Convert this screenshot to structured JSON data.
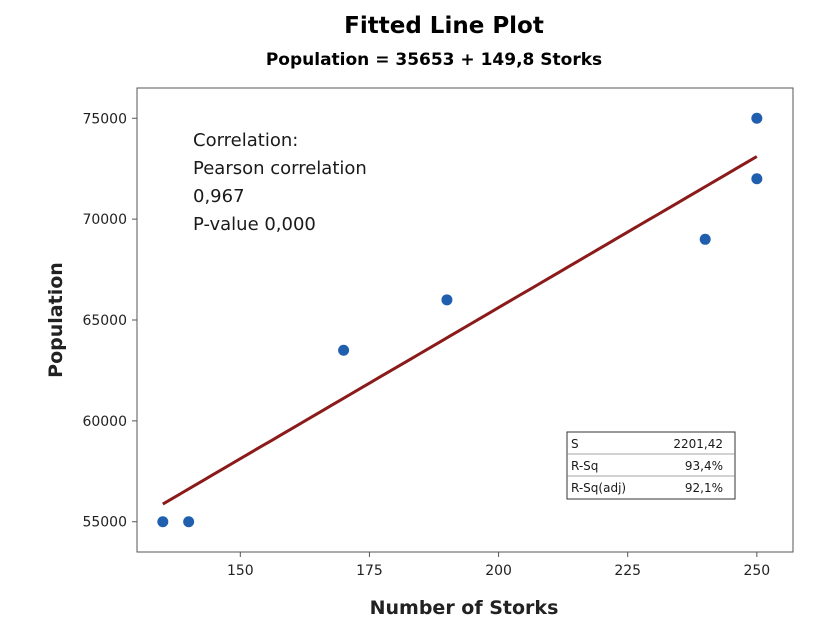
{
  "chart_data": {
    "type": "scatter",
    "title": "Fitted Line Plot",
    "subtitle": "Population = 35653 + 149,8 Storks",
    "xlabel": "Number of Storks",
    "ylabel": "Population",
    "xlim": [
      130,
      257
    ],
    "ylim": [
      53500,
      76500
    ],
    "xticks": [
      150,
      175,
      200,
      225,
      250
    ],
    "yticks": [
      55000,
      60000,
      65000,
      70000,
      75000
    ],
    "xtick_labels": [
      "150",
      "175",
      "200",
      "225",
      "250"
    ],
    "ytick_labels": [
      "55000",
      "60000",
      "65000",
      "70000",
      "75000"
    ],
    "grid": false,
    "points": [
      {
        "x": 135,
        "y": 55000
      },
      {
        "x": 140,
        "y": 55000
      },
      {
        "x": 170,
        "y": 63500
      },
      {
        "x": 190,
        "y": 66000
      },
      {
        "x": 240,
        "y": 69000
      },
      {
        "x": 250,
        "y": 72000
      },
      {
        "x": 250,
        "y": 75000
      }
    ],
    "fit": {
      "intercept": 35653,
      "slope": 149.8,
      "x_range": [
        135,
        250
      ]
    },
    "point_color": "#1f5fae",
    "line_color": "#8b1a1a",
    "annotation": {
      "lines": [
        "Correlation:",
        "Pearson correlation",
        "0,967",
        "P-value 0,000"
      ]
    },
    "stats": [
      {
        "label": "S",
        "value": "2201,42"
      },
      {
        "label": "R-Sq",
        "value": "93,4%"
      },
      {
        "label": "R-Sq(adj)",
        "value": "92,1%"
      }
    ]
  }
}
